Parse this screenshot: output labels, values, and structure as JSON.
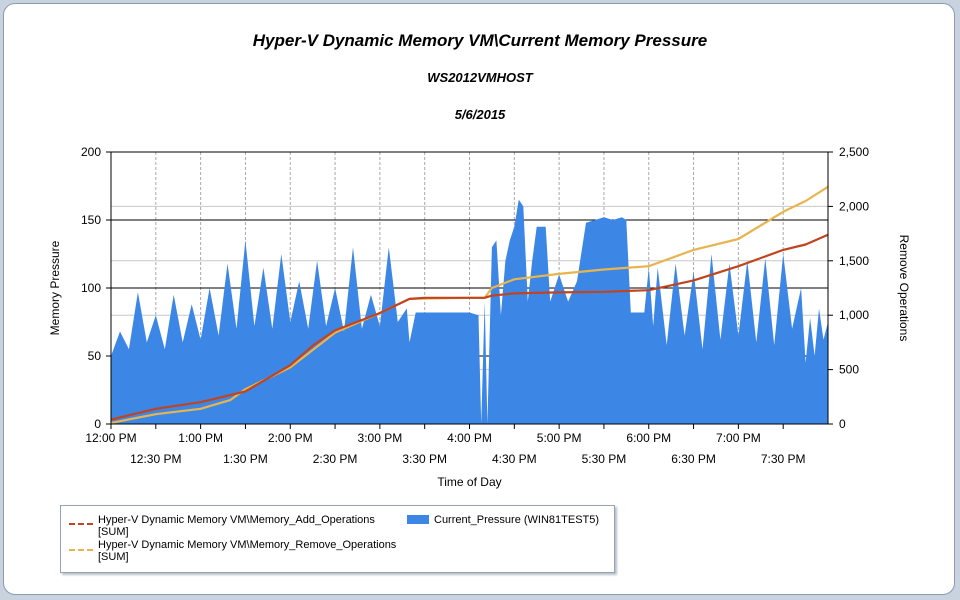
{
  "chart_data": {
    "type": "area+line",
    "title": "Hyper-V Dynamic Memory VM\\Current Memory Pressure",
    "subtitle": "WS2012VMHOST",
    "date": "5/6/2015",
    "xlabel": "Time of Day",
    "ylabel_left": "Memory Pressure",
    "ylabel_right": "Remove Operations",
    "x_range_hours": [
      0,
      8
    ],
    "ylim_left": [
      0,
      200
    ],
    "ylim_right": [
      0,
      2500
    ],
    "y_ticks_left": [
      "0",
      "50",
      "100",
      "150",
      "200"
    ],
    "y_ticks_right": [
      "0",
      "500",
      "1,000",
      "1,500",
      "2,000",
      "2,500"
    ],
    "x_ticks_major": [
      "12:00 PM",
      "1:00 PM",
      "2:00 PM",
      "3:00 PM",
      "4:00 PM",
      "5:00 PM",
      "6:00 PM",
      "7:00 PM"
    ],
    "x_ticks_minor": [
      "12:30 PM",
      "1:30 PM",
      "2:30 PM",
      "3:30 PM",
      "4:30 PM",
      "5:30 PM",
      "6:30 PM",
      "7:30 PM"
    ],
    "series": [
      {
        "name": "Hyper-V Dynamic Memory VM\\Memory_Add_Operations [SUM]",
        "legend_line1": "Hyper-V Dynamic Memory VM\\Memory_Add_Operations",
        "legend_line2": "[SUM]",
        "type": "line",
        "axis": "right",
        "color": "#c0441f",
        "points": [
          [
            0,
            40
          ],
          [
            0.5,
            140
          ],
          [
            1,
            200
          ],
          [
            1.5,
            300
          ],
          [
            2,
            540
          ],
          [
            2.25,
            720
          ],
          [
            2.5,
            860
          ],
          [
            3,
            1020
          ],
          [
            3.33,
            1150
          ],
          [
            3.5,
            1160
          ],
          [
            4,
            1160
          ],
          [
            4.17,
            1160
          ],
          [
            4.25,
            1180
          ],
          [
            4.5,
            1200
          ],
          [
            5,
            1210
          ],
          [
            5.5,
            1215
          ],
          [
            6,
            1230
          ],
          [
            6.5,
            1320
          ],
          [
            7,
            1450
          ],
          [
            7.5,
            1600
          ],
          [
            7.75,
            1650
          ],
          [
            8,
            1740
          ]
        ]
      },
      {
        "name": "Hyper-V Dynamic Memory VM\\Memory_Remove_Operations [SUM]",
        "legend_line1": "Hyper-V Dynamic Memory VM\\Memory_Remove_Operations",
        "legend_line2": "[SUM]",
        "type": "line",
        "axis": "right",
        "color": "#e8b44f",
        "points": [
          [
            0,
            10
          ],
          [
            0.5,
            90
          ],
          [
            1,
            140
          ],
          [
            1.33,
            220
          ],
          [
            1.5,
            320
          ],
          [
            2,
            520
          ],
          [
            2.5,
            840
          ],
          [
            3,
            1020
          ],
          [
            3.33,
            1150
          ],
          [
            4,
            1160
          ],
          [
            4.17,
            1160
          ],
          [
            4.25,
            1250
          ],
          [
            4.5,
            1330
          ],
          [
            5,
            1380
          ],
          [
            5.5,
            1420
          ],
          [
            6,
            1450
          ],
          [
            6.5,
            1600
          ],
          [
            7,
            1700
          ],
          [
            7.5,
            1950
          ],
          [
            7.75,
            2050
          ],
          [
            8,
            2180
          ]
        ]
      },
      {
        "name": "Current_Pressure (WIN81TEST5)",
        "legend_label": "Current_Pressure (WIN81TEST5)",
        "type": "area",
        "axis": "left",
        "color": "#3c87e5",
        "points": [
          [
            0,
            50
          ],
          [
            0.1,
            68
          ],
          [
            0.2,
            55
          ],
          [
            0.3,
            97
          ],
          [
            0.4,
            60
          ],
          [
            0.5,
            80
          ],
          [
            0.6,
            55
          ],
          [
            0.7,
            95
          ],
          [
            0.8,
            60
          ],
          [
            0.9,
            88
          ],
          [
            1,
            62
          ],
          [
            1.1,
            100
          ],
          [
            1.2,
            65
          ],
          [
            1.3,
            118
          ],
          [
            1.4,
            70
          ],
          [
            1.5,
            135
          ],
          [
            1.6,
            72
          ],
          [
            1.7,
            115
          ],
          [
            1.8,
            70
          ],
          [
            1.9,
            125
          ],
          [
            2,
            75
          ],
          [
            2.1,
            105
          ],
          [
            2.2,
            70
          ],
          [
            2.3,
            120
          ],
          [
            2.4,
            72
          ],
          [
            2.5,
            100
          ],
          [
            2.6,
            68
          ],
          [
            2.7,
            130
          ],
          [
            2.8,
            70
          ],
          [
            2.9,
            95
          ],
          [
            3,
            72
          ],
          [
            3.1,
            130
          ],
          [
            3.2,
            75
          ],
          [
            3.3,
            85
          ],
          [
            3.33,
            60
          ],
          [
            3.4,
            82
          ],
          [
            3.6,
            82
          ],
          [
            3.8,
            82
          ],
          [
            4,
            82
          ],
          [
            4.1,
            80
          ],
          [
            4.13,
            0
          ],
          [
            4.17,
            90
          ],
          [
            4.2,
            0
          ],
          [
            4.25,
            130
          ],
          [
            4.3,
            135
          ],
          [
            4.35,
            80
          ],
          [
            4.4,
            120
          ],
          [
            4.45,
            135
          ],
          [
            4.5,
            145
          ],
          [
            4.55,
            165
          ],
          [
            4.6,
            160
          ],
          [
            4.65,
            90
          ],
          [
            4.7,
            120
          ],
          [
            4.75,
            145
          ],
          [
            4.85,
            145
          ],
          [
            4.9,
            90
          ],
          [
            5,
            110
          ],
          [
            5.1,
            90
          ],
          [
            5.2,
            105
          ],
          [
            5.3,
            148
          ],
          [
            5.4,
            150
          ],
          [
            5.5,
            152
          ],
          [
            5.6,
            150
          ],
          [
            5.7,
            152
          ],
          [
            5.75,
            150
          ],
          [
            5.8,
            82
          ],
          [
            5.95,
            82
          ],
          [
            6,
            115
          ],
          [
            6.05,
            72
          ],
          [
            6.1,
            115
          ],
          [
            6.2,
            58
          ],
          [
            6.3,
            118
          ],
          [
            6.4,
            65
          ],
          [
            6.5,
            112
          ],
          [
            6.6,
            55
          ],
          [
            6.7,
            125
          ],
          [
            6.8,
            62
          ],
          [
            6.9,
            118
          ],
          [
            7,
            65
          ],
          [
            7.1,
            120
          ],
          [
            7.2,
            60
          ],
          [
            7.3,
            122
          ],
          [
            7.4,
            58
          ],
          [
            7.5,
            125
          ],
          [
            7.6,
            70
          ],
          [
            7.7,
            100
          ],
          [
            7.75,
            45
          ],
          [
            7.8,
            78
          ],
          [
            7.85,
            50
          ],
          [
            7.9,
            85
          ],
          [
            7.95,
            62
          ],
          [
            8,
            75
          ]
        ]
      }
    ]
  }
}
